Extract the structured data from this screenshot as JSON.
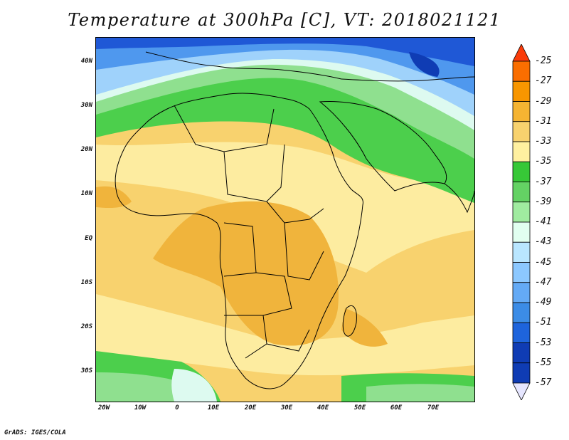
{
  "title": "Temperature at 300hPa [C], VT: 2018021121",
  "credit": "GrADS: IGES/COLA",
  "lat_ticks": [
    "40N",
    "30N",
    "20N",
    "10N",
    "EQ",
    "10S",
    "20S",
    "30S"
  ],
  "lon_ticks": [
    "20W",
    "10W",
    "0",
    "10E",
    "20E",
    "30E",
    "40E",
    "50E",
    "60E",
    "70E"
  ],
  "colorbar": {
    "labels": [
      "-25",
      "-27",
      "-29",
      "-31",
      "-33",
      "-35",
      "-37",
      "-39",
      "-41",
      "-43",
      "-45",
      "-47",
      "-49",
      "-51",
      "-53",
      "-55",
      "-57"
    ],
    "colors": [
      "#fa3c0a",
      "#fa6e00",
      "#f89600",
      "#f5b432",
      "#f8d26e",
      "#fff0a0",
      "#37c837",
      "#64d264",
      "#a0eba0",
      "#e1fff0",
      "#b9e6ff",
      "#8cc8ff",
      "#64aaf5",
      "#3c8ce6",
      "#1e64dc",
      "#0f3cb4",
      "#0a1978"
    ]
  },
  "colors": {
    "warm_core": "#f0b43c",
    "warm": "#f8d26e",
    "pale_yellow": "#fdeca0",
    "green": "#4ccf4c",
    "light_green": "#8fe08f",
    "pale_cyan": "#ddfaf0",
    "light_blue": "#9fd2fb",
    "blue": "#4f98ee",
    "dark_blue": "#1f58d6",
    "border": "#000000"
  }
}
